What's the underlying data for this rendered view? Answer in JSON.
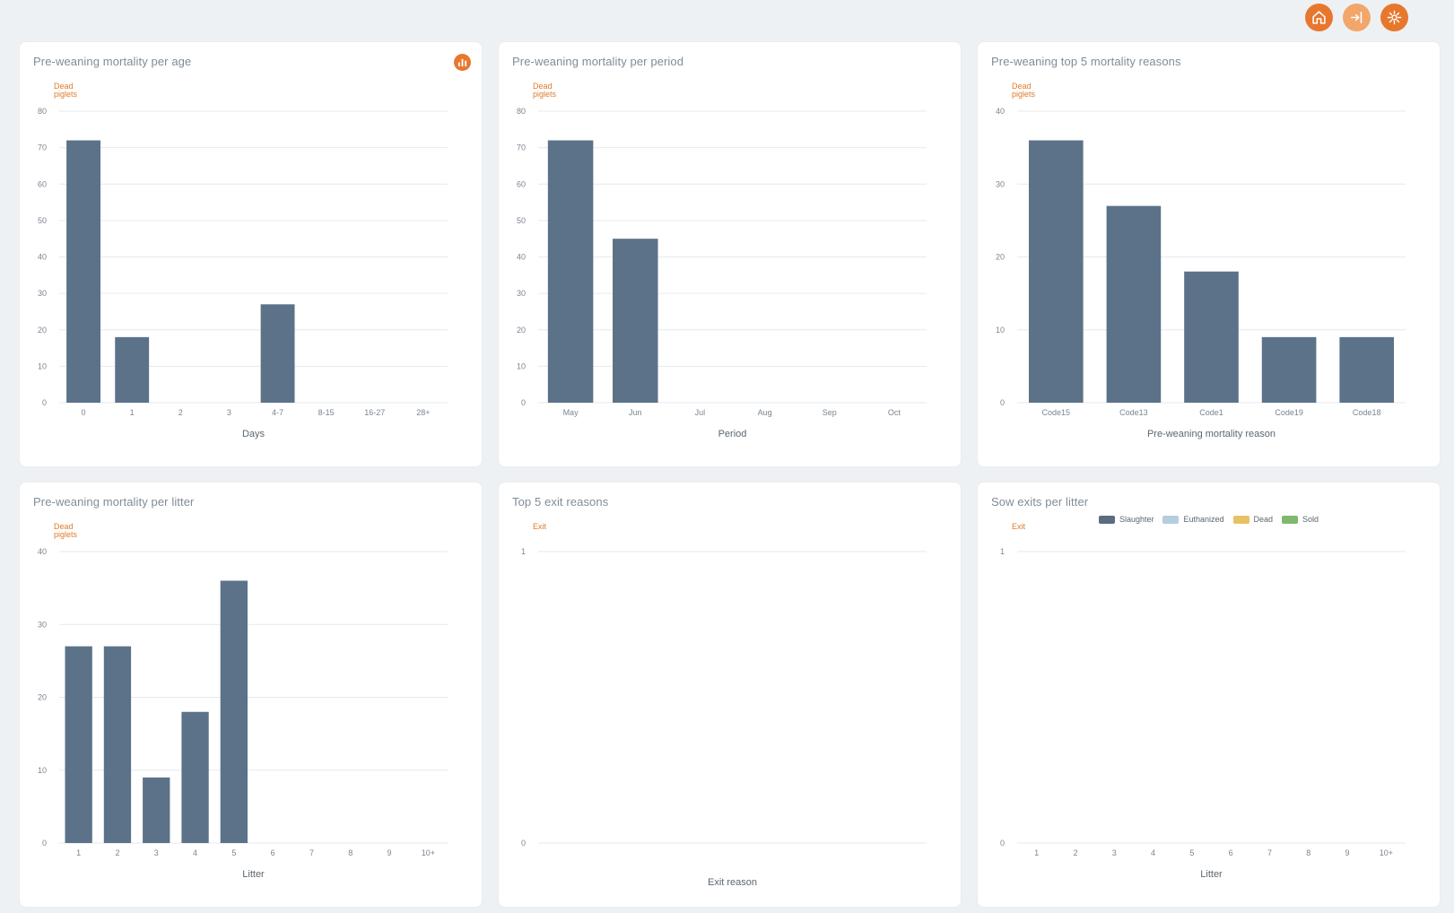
{
  "header": {
    "buttons": [
      {
        "icon": "home-icon",
        "color": "#e8772e"
      },
      {
        "icon": "login-icon",
        "color": "#f2a66a"
      },
      {
        "icon": "settings-icon",
        "color": "#e8772e"
      }
    ]
  },
  "colors": {
    "bar": "#5b7289",
    "accent": "#e8772e",
    "grid": "#e6e9ec",
    "axis_label": "#e07b2a"
  },
  "cards": [
    {
      "title": "Pre-weaning mortality per age",
      "has_action": true,
      "action_icon": "bar-chart-icon",
      "chart_data": {
        "type": "bar",
        "title": "Pre-weaning mortality per age",
        "ylabel": [
          "Dead",
          "piglets"
        ],
        "xlabel": "Days",
        "categories": [
          "0",
          "1",
          "2",
          "3",
          "4-7",
          "8-15",
          "16-27",
          "28+"
        ],
        "values": [
          72,
          18,
          0,
          0,
          27,
          0,
          0,
          0
        ],
        "ylim": [
          0,
          80
        ],
        "yticks": [
          0,
          10,
          20,
          30,
          40,
          50,
          60,
          70,
          80
        ],
        "grid": true
      }
    },
    {
      "title": "Pre-weaning mortality per period",
      "has_action": false,
      "chart_data": {
        "type": "bar",
        "title": "Pre-weaning mortality per period",
        "ylabel": [
          "Dead",
          "piglets"
        ],
        "xlabel": "Period",
        "categories": [
          "May",
          "Jun",
          "Jul",
          "Aug",
          "Sep",
          "Oct"
        ],
        "values": [
          72,
          45,
          0,
          0,
          0,
          0
        ],
        "ylim": [
          0,
          80
        ],
        "yticks": [
          0,
          10,
          20,
          30,
          40,
          50,
          60,
          70,
          80
        ],
        "grid": true
      }
    },
    {
      "title": "Pre-weaning top 5 mortality reasons",
      "has_action": false,
      "chart_data": {
        "type": "bar",
        "title": "Pre-weaning top 5 mortality reasons",
        "ylabel": [
          "Dead",
          "piglets"
        ],
        "xlabel": "Pre-weaning mortality reason",
        "categories": [
          "Code15",
          "Code13",
          "Code1",
          "Code19",
          "Code18"
        ],
        "values": [
          36,
          27,
          18,
          9,
          9
        ],
        "ylim": [
          0,
          40
        ],
        "yticks": [
          0,
          10,
          20,
          30,
          40
        ],
        "grid": true
      }
    },
    {
      "title": "Pre-weaning mortality per litter",
      "has_action": false,
      "chart_data": {
        "type": "bar",
        "title": "Pre-weaning mortality per litter",
        "ylabel": [
          "Dead",
          "piglets"
        ],
        "xlabel": "Litter",
        "categories": [
          "1",
          "2",
          "3",
          "4",
          "5",
          "6",
          "7",
          "8",
          "9",
          "10+"
        ],
        "values": [
          27,
          27,
          9,
          18,
          36,
          0,
          0,
          0,
          0,
          0
        ],
        "ylim": [
          0,
          40
        ],
        "yticks": [
          0,
          10,
          20,
          30,
          40
        ],
        "grid": true
      }
    },
    {
      "title": "Top 5 exit reasons",
      "has_action": false,
      "chart_data": {
        "type": "bar",
        "title": "Top 5 exit reasons",
        "ylabel": [
          "Exit"
        ],
        "xlabel": "Exit reason",
        "categories": [],
        "values": [],
        "ylim": [
          0,
          1
        ],
        "yticks": [
          0,
          1
        ],
        "grid": true
      }
    },
    {
      "title": "Sow exits per litter",
      "has_action": false,
      "legend": [
        {
          "label": "Slaughter",
          "color": "#5b6b82"
        },
        {
          "label": "Euthanized",
          "color": "#b4cde0"
        },
        {
          "label": "Dead",
          "color": "#e8c065"
        },
        {
          "label": "Sold",
          "color": "#7fb86e"
        }
      ],
      "chart_data": {
        "type": "bar",
        "title": "Sow exits per litter",
        "ylabel": [
          "Exit"
        ],
        "xlabel": "Litter",
        "categories": [
          "1",
          "2",
          "3",
          "4",
          "5",
          "6",
          "7",
          "8",
          "9",
          "10+"
        ],
        "series": [
          {
            "name": "Slaughter",
            "values": [
              0,
              0,
              0,
              0,
              0,
              0,
              0,
              0,
              0,
              0
            ]
          },
          {
            "name": "Euthanized",
            "values": [
              0,
              0,
              0,
              0,
              0,
              0,
              0,
              0,
              0,
              0
            ]
          },
          {
            "name": "Dead",
            "values": [
              0,
              0,
              0,
              0,
              0,
              0,
              0,
              0,
              0,
              0
            ]
          },
          {
            "name": "Sold",
            "values": [
              0,
              0,
              0,
              0,
              0,
              0,
              0,
              0,
              0,
              0
            ]
          }
        ],
        "ylim": [
          0,
          1
        ],
        "yticks": [
          0,
          1
        ],
        "grid": true,
        "legend_position": "top-center"
      }
    }
  ]
}
